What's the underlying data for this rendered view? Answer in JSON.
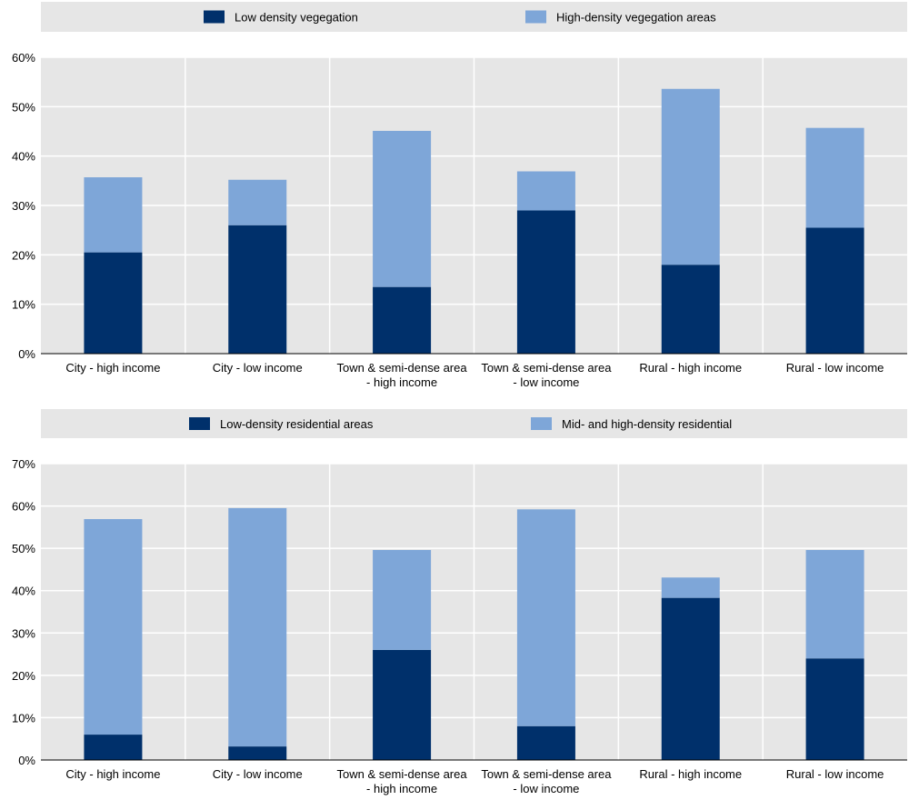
{
  "colors": {
    "dark": "#00306b",
    "light": "#7ea6d8",
    "plot_bg": "#e6e6e6",
    "grid": "#ffffff",
    "axis": "#000000"
  },
  "chart_data": [
    {
      "type": "bar",
      "stacked": true,
      "title": "",
      "xlabel": "",
      "ylabel": "",
      "ylim": [
        0,
        60
      ],
      "yticks": [
        0,
        10,
        20,
        30,
        40,
        50,
        60
      ],
      "ytick_labels": [
        "0%",
        "10%",
        "20%",
        "30%",
        "40%",
        "50%",
        "60%"
      ],
      "legend_position": "top",
      "categories": [
        [
          "City - high income"
        ],
        [
          "City - low income"
        ],
        [
          "Town & semi-dense area",
          "- high income"
        ],
        [
          "Town & semi-dense area",
          "- low income"
        ],
        [
          "Rural - high income"
        ],
        [
          "Rural - low income"
        ]
      ],
      "series": [
        {
          "name": "Low density vegegation",
          "color": "#00306b",
          "values": [
            20.5,
            26,
            13.5,
            29,
            18,
            25.5
          ]
        },
        {
          "name": "High-density vegegation areas",
          "color": "#7ea6d8",
          "values": [
            15.2,
            9.2,
            31.6,
            7.9,
            35.6,
            20.2
          ]
        }
      ]
    },
    {
      "type": "bar",
      "stacked": true,
      "title": "",
      "xlabel": "",
      "ylabel": "",
      "ylim": [
        0,
        70
      ],
      "yticks": [
        0,
        10,
        20,
        30,
        40,
        50,
        60,
        70
      ],
      "ytick_labels": [
        "0%",
        "10%",
        "20%",
        "30%",
        "40%",
        "50%",
        "60%",
        "70%"
      ],
      "legend_position": "top",
      "categories": [
        [
          "City - high income"
        ],
        [
          "City - low income"
        ],
        [
          "Town & semi-dense area",
          "- high income"
        ],
        [
          "Town & semi-dense area",
          "- low income"
        ],
        [
          "Rural - high income"
        ],
        [
          "Rural - low income"
        ]
      ],
      "series": [
        {
          "name": "Low-density residential areas",
          "color": "#00306b",
          "values": [
            6,
            3.2,
            26,
            8,
            38.3,
            24
          ]
        },
        {
          "name": "Mid- and high-density residential",
          "color": "#7ea6d8",
          "values": [
            50.9,
            56.3,
            23.6,
            51.2,
            4.8,
            25.6
          ]
        }
      ]
    }
  ]
}
